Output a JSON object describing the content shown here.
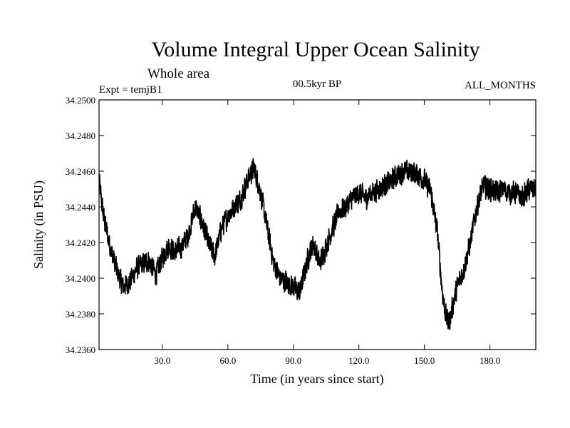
{
  "chart_data": {
    "type": "line",
    "title": "Volume Integral Upper Ocean Salinity",
    "subtitle": "Whole area",
    "experiment": "Expt = temjB1",
    "period": "00.5kyr BP",
    "months": "ALL_MONTHS",
    "xlabel": "Time (in years since start)",
    "ylabel": "Salinity (in PSU)",
    "xlim": [
      1,
      201
    ],
    "ylim": [
      34.236,
      34.25
    ],
    "x_ticks": [
      30,
      60,
      90,
      120,
      150,
      180
    ],
    "x_tick_labels": [
      "30.0",
      "60.0",
      "90.0",
      "120.0",
      "150.0",
      "180.0"
    ],
    "y_ticks": [
      34.236,
      34.238,
      34.24,
      34.242,
      34.244,
      34.246,
      34.248,
      34.25
    ],
    "y_tick_labels": [
      "34.2360",
      "34.2380",
      "34.2400",
      "34.2420",
      "34.2440",
      "34.2460",
      "34.2480",
      "34.2500"
    ],
    "grid": false,
    "series": [
      {
        "name": "Salinity",
        "color": "#000000",
        "note": "Monthly values; high-frequency variability shown with approximate anchor trend plus noise",
        "anchors": {
          "x": [
            1,
            3,
            6,
            9,
            12,
            15,
            18,
            21,
            24,
            27,
            30,
            33,
            36,
            39,
            42,
            45,
            48,
            51,
            54,
            57,
            60,
            63,
            66,
            69,
            72,
            75,
            78,
            81,
            84,
            87,
            90,
            93,
            96,
            99,
            102,
            105,
            108,
            111,
            114,
            117,
            120,
            123,
            126,
            129,
            132,
            135,
            138,
            141,
            144,
            147,
            150,
            153,
            156,
            157,
            158,
            159,
            160,
            161,
            162,
            163,
            165,
            168,
            171,
            174,
            177,
            180,
            183,
            186,
            189,
            192,
            195,
            198,
            201
          ],
          "y": [
            34.2455,
            34.2435,
            34.2418,
            34.2405,
            34.2395,
            34.2398,
            34.2405,
            34.2408,
            34.241,
            34.2402,
            34.2412,
            34.2418,
            34.2415,
            34.2418,
            34.2425,
            34.244,
            34.2432,
            34.242,
            34.2412,
            34.2428,
            34.2435,
            34.244,
            34.2445,
            34.2455,
            34.2462,
            34.2448,
            34.2428,
            34.2408,
            34.24,
            34.2398,
            34.2395,
            34.2392,
            34.2408,
            34.242,
            34.2408,
            34.2418,
            34.2428,
            34.2438,
            34.244,
            34.2445,
            34.2448,
            34.2445,
            34.2448,
            34.245,
            34.2452,
            34.2455,
            34.2458,
            34.246,
            34.246,
            34.2458,
            34.2455,
            34.2448,
            34.2425,
            34.241,
            34.2395,
            34.2385,
            34.2378,
            34.2375,
            34.2378,
            34.2385,
            34.2395,
            34.2405,
            34.242,
            34.244,
            34.2452,
            34.245,
            34.2448,
            34.245,
            34.2448,
            34.2448,
            34.2445,
            34.245,
            34.245
          ]
        },
        "noise_amplitude": 0.00075,
        "samples_per_year": 12
      }
    ]
  }
}
